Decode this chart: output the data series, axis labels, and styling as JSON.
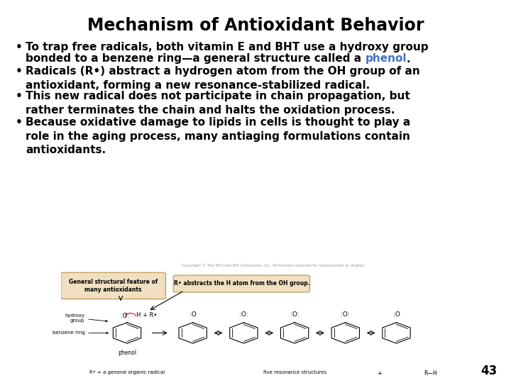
{
  "title": "Mechanism of Antioxidant Behavior",
  "title_fontsize": 17,
  "bg_color": "#ffffff",
  "text_color": "#000000",
  "phenol_color": "#4472c4",
  "body_fontsize": 11.0,
  "page_number": "43",
  "copyright_text": "Copyright © The McGraw-Hill Companies, Inc. Permission required for reproduction or display.",
  "box1_text": "General structural feature of\nmany antioxidants",
  "box2_text": "R• abstracts the H atom from the OH group.",
  "hydroxy_label": "hydroxy\ngroup",
  "benzene_label": "benzene ring",
  "phenol_label": "phenol",
  "radical_label": "R• = a general organic radical",
  "resonance_label": "five resonance structures",
  "plus_label": "+",
  "rh_label": "R—H",
  "line1_b1": "To trap free radicals, both vitamin E and BHT use a hydroxy group",
  "line2_b1_before": "bonded to a benzene ring—a general structure called a ",
  "line2_b1_phenol": "phenol",
  "line2_b1_after": ".",
  "bullet2": "Radicals (R•) abstract a hydrogen atom from the OH group of an\nantioxidant, forming a new resonance-stabilized radical.",
  "bullet3": "This new radical does not participate in chain propagation, but\nrather terminates the chain and halts the oxidation process.",
  "bullet4": "Because oxidative damage to lipids in cells is thought to play a\nrole in the aging process, many antiaging formulations contain\nantioxidants.",
  "box1_facecolor": "#f0dfc0",
  "box1_edgecolor": "#b8924a",
  "box2_facecolor": "#f0dfc0",
  "box2_edgecolor": "#b8924a",
  "diagram_fontsize": 5.5,
  "diagram_label_fontsize": 6.0
}
